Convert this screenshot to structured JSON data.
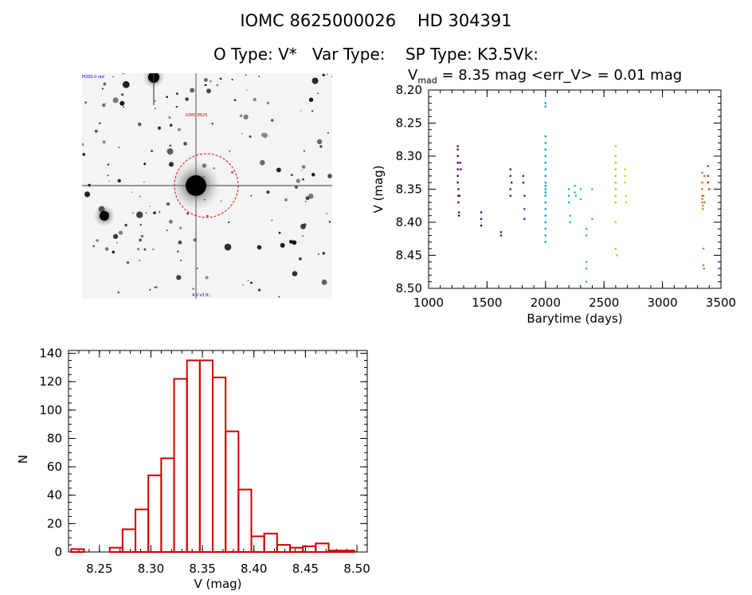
{
  "header": {
    "title": "IOMC 8625000026    HD 304391",
    "otype_label": "O Type: V*",
    "vartype_label": "Var Type:",
    "sptype_label": "SP Type: K3.5Vk:",
    "vmag_prefix": "V",
    "vmag_sub": "mad",
    "vmag_rest": " = 8.35 mag <err_V> = 0.01 mag"
  },
  "finder": {
    "caption_top_left": "POSS-II red",
    "caption_target": "IOMC 8625",
    "caption_bottom": "4.1'x3.9'",
    "colors": {
      "circle": "#ff0000",
      "bg": "#f4f4f4",
      "star": "#111111"
    }
  },
  "chart_data": [
    {
      "type": "scatter",
      "title": "",
      "xlabel": "Barytime (days)",
      "ylabel": "V (mag)",
      "xlim": [
        1000,
        3500
      ],
      "ylim": [
        8.5,
        8.2
      ],
      "xticks": [
        "1000",
        "1500",
        "2000",
        "2500",
        "3000",
        "3500"
      ],
      "yticks": [
        "8.20",
        "8.25",
        "8.30",
        "8.35",
        "8.40",
        "8.45",
        "8.50"
      ],
      "series": [
        {
          "name": "s1",
          "color": "#4b0a5a",
          "x": [
            1250,
            1250,
            1250,
            1250,
            1250,
            1250,
            1250,
            1255,
            1255,
            1255,
            1260,
            1260,
            1265,
            1270,
            1275
          ],
          "y": [
            8.285,
            8.29,
            8.3,
            8.31,
            8.32,
            8.33,
            8.34,
            8.35,
            8.36,
            8.37,
            8.385,
            8.39,
            8.36,
            8.31,
            8.32
          ]
        },
        {
          "name": "s2",
          "color": "#3a1a7a",
          "x": [
            1450,
            1450,
            1450
          ],
          "y": [
            8.385,
            8.395,
            8.405
          ]
        },
        {
          "name": "s3",
          "color": "#2a2a9a",
          "x": [
            1620,
            1620,
            1700,
            1700,
            1700,
            1700,
            1710
          ],
          "y": [
            8.415,
            8.42,
            8.32,
            8.33,
            8.35,
            8.36,
            8.34
          ]
        },
        {
          "name": "s4",
          "color": "#1a3ab0",
          "x": [
            1810,
            1810,
            1820,
            1820,
            1820
          ],
          "y": [
            8.33,
            8.34,
            8.36,
            8.38,
            8.395
          ]
        },
        {
          "name": "s5",
          "color": "#18a0e0",
          "x": [
            2000,
            2000,
            2000,
            2000,
            2000,
            2000,
            2000,
            2000,
            2000,
            2000,
            2000,
            2000,
            2000,
            2000,
            2000,
            2000,
            2000,
            2000,
            2000,
            2000,
            2000
          ],
          "y": [
            8.22,
            8.225,
            8.27,
            8.28,
            8.29,
            8.3,
            8.31,
            8.32,
            8.33,
            8.34,
            8.345,
            8.35,
            8.355,
            8.36,
            8.37,
            8.38,
            8.39,
            8.4,
            8.41,
            8.42,
            8.43
          ]
        },
        {
          "name": "s6",
          "color": "#20c8b0",
          "x": [
            2200,
            2200,
            2200,
            2210,
            2210,
            2250,
            2250,
            2260
          ],
          "y": [
            8.35,
            8.36,
            8.37,
            8.39,
            8.4,
            8.345,
            8.355,
            8.36
          ]
        },
        {
          "name": "s7",
          "color": "#40d060",
          "x": [
            2300,
            2300,
            2350,
            2350,
            2350,
            2350,
            2350,
            2400,
            2400
          ],
          "y": [
            8.35,
            8.365,
            8.41,
            8.42,
            8.46,
            8.47,
            8.49,
            8.35,
            8.395
          ]
        },
        {
          "name": "s8",
          "color": "#90e020",
          "x": [
            2600,
            2600,
            2600,
            2600,
            2600,
            2600,
            2600,
            2600,
            2600,
            2600,
            2600,
            2610
          ],
          "y": [
            8.285,
            8.3,
            8.31,
            8.32,
            8.33,
            8.34,
            8.35,
            8.36,
            8.37,
            8.4,
            8.44,
            8.45
          ]
        },
        {
          "name": "s9",
          "color": "#d0e020",
          "x": [
            2680,
            2680,
            2680,
            2690,
            2690
          ],
          "y": [
            8.32,
            8.33,
            8.34,
            8.36,
            8.37
          ]
        },
        {
          "name": "s10",
          "color": "#e08010",
          "x": [
            3340,
            3340,
            3340,
            3340,
            3340,
            3340,
            3345,
            3345,
            3350,
            3350,
            3350,
            3355,
            3360,
            3360
          ],
          "y": [
            8.325,
            8.34,
            8.35,
            8.36,
            8.365,
            8.37,
            8.375,
            8.38,
            8.36,
            8.44,
            8.465,
            8.47,
            8.33,
            8.37
          ]
        },
        {
          "name": "s11",
          "color": "#d03010",
          "x": [
            3390,
            3390,
            3390,
            3400
          ],
          "y": [
            8.315,
            8.33,
            8.34,
            8.35
          ]
        }
      ]
    },
    {
      "type": "bar",
      "title": "",
      "xlabel": "V (mag)",
      "ylabel": "N",
      "xlim": [
        8.22,
        8.51
      ],
      "ylim": [
        0,
        142
      ],
      "xticks": [
        "8.25",
        "8.30",
        "8.35",
        "8.40",
        "8.45",
        "8.50"
      ],
      "yticks": [
        "0",
        "20",
        "40",
        "60",
        "80",
        "100",
        "120",
        "140"
      ],
      "bin_width": 0.0125,
      "bin_starts": [
        8.2225,
        8.235,
        8.2475,
        8.26,
        8.2725,
        8.285,
        8.2975,
        8.31,
        8.3225,
        8.335,
        8.3475,
        8.36,
        8.3725,
        8.385,
        8.3975,
        8.41,
        8.4225,
        8.435,
        8.4475,
        8.46,
        8.4725,
        8.485
      ],
      "values": [
        2,
        0,
        0,
        3,
        16,
        30,
        54,
        66,
        122,
        135,
        135,
        123,
        85,
        44,
        11,
        13,
        5,
        3,
        4,
        6,
        1,
        1
      ],
      "color": "#cc0000"
    }
  ]
}
